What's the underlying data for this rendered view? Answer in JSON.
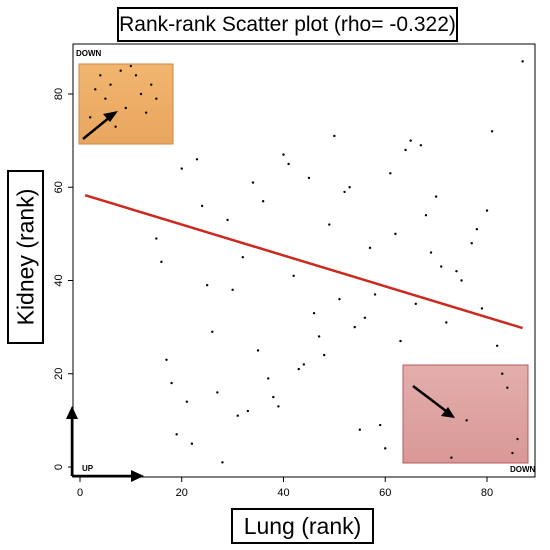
{
  "chart_data": {
    "type": "scatter",
    "title": "Rank-rank Scatter plot (rho= -0.322)",
    "xlabel": "Lung (rank)",
    "ylabel": "Kidney (rank)",
    "xlim": [
      -1,
      89
    ],
    "ylim": [
      -1,
      90
    ],
    "x_ticks": [
      0,
      20,
      40,
      60,
      80
    ],
    "y_ticks": [
      0,
      20,
      40,
      60,
      80
    ],
    "grid": false,
    "points": [
      [
        2,
        75
      ],
      [
        3,
        81
      ],
      [
        4,
        84
      ],
      [
        5,
        79
      ],
      [
        6,
        82
      ],
      [
        7,
        73
      ],
      [
        8,
        85
      ],
      [
        9,
        77
      ],
      [
        10,
        86
      ],
      [
        11,
        84
      ],
      [
        12,
        80
      ],
      [
        13,
        76
      ],
      [
        14,
        82
      ],
      [
        15,
        79
      ],
      [
        15,
        49
      ],
      [
        16,
        44
      ],
      [
        17,
        23
      ],
      [
        18,
        18
      ],
      [
        19,
        7
      ],
      [
        20,
        64
      ],
      [
        21,
        14
      ],
      [
        22,
        5
      ],
      [
        23,
        66
      ],
      [
        24,
        56
      ],
      [
        25,
        39
      ],
      [
        26,
        29
      ],
      [
        27,
        16
      ],
      [
        28,
        1
      ],
      [
        29,
        53
      ],
      [
        30,
        38
      ],
      [
        31,
        11
      ],
      [
        32,
        45
      ],
      [
        33,
        12
      ],
      [
        34,
        61
      ],
      [
        35,
        25
      ],
      [
        36,
        57
      ],
      [
        37,
        19
      ],
      [
        38,
        15
      ],
      [
        39,
        13
      ],
      [
        40,
        67
      ],
      [
        41,
        65
      ],
      [
        42,
        41
      ],
      [
        43,
        21
      ],
      [
        44,
        22
      ],
      [
        45,
        62
      ],
      [
        46,
        33
      ],
      [
        47,
        28
      ],
      [
        48,
        24
      ],
      [
        49,
        52
      ],
      [
        50,
        71
      ],
      [
        51,
        36
      ],
      [
        52,
        59
      ],
      [
        53,
        60
      ],
      [
        54,
        30
      ],
      [
        55,
        8
      ],
      [
        56,
        32
      ],
      [
        57,
        47
      ],
      [
        58,
        37
      ],
      [
        59,
        9
      ],
      [
        60,
        4
      ],
      [
        61,
        63
      ],
      [
        62,
        50
      ],
      [
        63,
        27
      ],
      [
        64,
        68
      ],
      [
        65,
        70
      ],
      [
        66,
        35
      ],
      [
        67,
        69
      ],
      [
        68,
        54
      ],
      [
        69,
        46
      ],
      [
        70,
        58
      ],
      [
        71,
        43
      ],
      [
        72,
        31
      ],
      [
        73,
        2
      ],
      [
        74,
        42
      ],
      [
        75,
        40
      ],
      [
        76,
        10
      ],
      [
        77,
        48
      ],
      [
        78,
        51
      ],
      [
        79,
        34
      ],
      [
        80,
        55
      ],
      [
        81,
        72
      ],
      [
        82,
        26
      ],
      [
        83,
        20
      ],
      [
        84,
        17
      ],
      [
        85,
        3
      ],
      [
        86,
        6
      ],
      [
        87,
        87
      ]
    ],
    "regression": {
      "color": "#cc2a1e",
      "x": [
        1,
        87
      ],
      "y": [
        58.3,
        29.8
      ]
    },
    "annotations": {
      "down_top_left": "DOWN",
      "up_label": "UP",
      "down_bottom_right": "DOWN"
    },
    "colors": {
      "top_left_box": "#f1b56f",
      "bottom_right_box": "#e0a7a5",
      "points": "#000000"
    }
  }
}
